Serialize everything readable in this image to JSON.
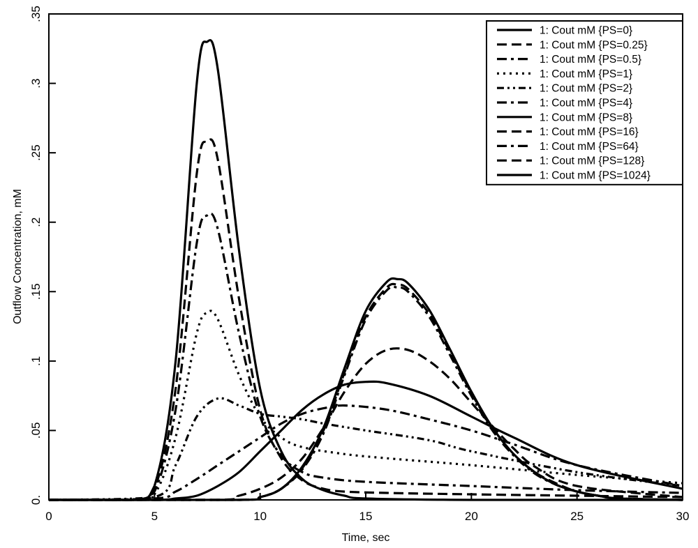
{
  "chart_data": {
    "type": "line",
    "title": "",
    "xlabel": "Time, sec",
    "ylabel": "Outflow Concentration, mM",
    "xlim": [
      0,
      30
    ],
    "ylim": [
      0,
      0.35
    ],
    "grid": false,
    "legend_position": "top-right",
    "x_ticks": [
      {
        "value": 0,
        "label": "0"
      },
      {
        "value": 5,
        "label": "5"
      },
      {
        "value": 10,
        "label": "10"
      },
      {
        "value": 15,
        "label": "15"
      },
      {
        "value": 20,
        "label": "20"
      },
      {
        "value": 25,
        "label": "25"
      },
      {
        "value": 30,
        "label": "30"
      }
    ],
    "y_ticks": [
      {
        "value": 0,
        "label": "0."
      },
      {
        "value": 0.05,
        "label": ".05"
      },
      {
        "value": 0.1,
        "label": ".1"
      },
      {
        "value": 0.15,
        "label": ".15"
      },
      {
        "value": 0.2,
        "label": ".2"
      },
      {
        "value": 0.25,
        "label": ".25"
      },
      {
        "value": 0.3,
        "label": ".3"
      },
      {
        "value": 0.35,
        "label": ".35"
      }
    ],
    "series": [
      {
        "name": "1: Cout mM {PS=0}",
        "dash": "solid",
        "x": [
          0,
          4,
          5,
          6,
          7,
          7.5,
          8,
          9,
          10,
          11,
          12,
          13,
          14,
          15,
          20,
          30
        ],
        "y": [
          0,
          0,
          0.01,
          0.1,
          0.3,
          0.33,
          0.31,
          0.18,
          0.08,
          0.035,
          0.015,
          0.007,
          0.003,
          0.001,
          0,
          0
        ]
      },
      {
        "name": "1: Cout mM {PS=0.25}",
        "dash": "long-dash",
        "x": [
          0,
          4,
          5,
          6,
          7,
          7.5,
          8,
          9,
          10,
          11,
          12,
          13,
          14,
          16,
          20,
          25,
          30
        ],
        "y": [
          0,
          0,
          0.008,
          0.08,
          0.235,
          0.258,
          0.245,
          0.145,
          0.065,
          0.03,
          0.014,
          0.008,
          0.006,
          0.005,
          0.004,
          0.003,
          0.002
        ]
      },
      {
        "name": "1: Cout mM {PS=0.5}",
        "dash": "dash-dot",
        "x": [
          0,
          4,
          5,
          6,
          7,
          7.5,
          8,
          9,
          10,
          11,
          12,
          13,
          15,
          20,
          25,
          30
        ],
        "y": [
          0,
          0,
          0.006,
          0.065,
          0.185,
          0.205,
          0.195,
          0.12,
          0.06,
          0.032,
          0.02,
          0.016,
          0.013,
          0.01,
          0.007,
          0.005
        ]
      },
      {
        "name": "1: Cout mM {PS=1}",
        "dash": "dotted",
        "x": [
          0,
          4,
          5,
          6,
          7,
          7.5,
          8,
          9,
          10,
          11,
          12,
          14,
          16,
          20,
          25,
          30
        ],
        "y": [
          0,
          0,
          0.004,
          0.045,
          0.12,
          0.135,
          0.13,
          0.09,
          0.06,
          0.045,
          0.038,
          0.033,
          0.03,
          0.025,
          0.018,
          0.012
        ]
      },
      {
        "name": "1: Cout mM {PS=2}",
        "dash": "dash-dot-dot",
        "x": [
          0,
          5,
          6,
          7,
          8,
          9,
          10,
          11,
          12,
          13,
          15,
          18,
          20,
          25,
          30
        ],
        "y": [
          0,
          0.002,
          0.025,
          0.06,
          0.073,
          0.068,
          0.062,
          0.06,
          0.058,
          0.055,
          0.05,
          0.043,
          0.035,
          0.02,
          0.01
        ]
      },
      {
        "name": "1: Cout mM {PS=4}",
        "dash": "dash-dot",
        "x": [
          0,
          5,
          6,
          7,
          8,
          9,
          10,
          11,
          12,
          13,
          14,
          16,
          18,
          20,
          22,
          25,
          30
        ],
        "y": [
          0,
          0.001,
          0.006,
          0.015,
          0.025,
          0.035,
          0.045,
          0.055,
          0.062,
          0.066,
          0.068,
          0.065,
          0.058,
          0.05,
          0.04,
          0.025,
          0.01
        ]
      },
      {
        "name": "1: Cout mM {PS=8}",
        "dash": "solid",
        "x": [
          0,
          5,
          6,
          7,
          8,
          9,
          10,
          11,
          12,
          13,
          14,
          15,
          16,
          18,
          20,
          22,
          25,
          30
        ],
        "y": [
          0,
          0,
          0.001,
          0.003,
          0.01,
          0.02,
          0.035,
          0.05,
          0.065,
          0.076,
          0.083,
          0.085,
          0.084,
          0.075,
          0.06,
          0.045,
          0.025,
          0.008
        ]
      },
      {
        "name": "1: Cout mM {PS=16}",
        "dash": "long-dash",
        "x": [
          0,
          8,
          9,
          10,
          11,
          12,
          13,
          14,
          15,
          16,
          17,
          18,
          19,
          20,
          21,
          22,
          23,
          25,
          30
        ],
        "y": [
          0,
          0,
          0.003,
          0.008,
          0.016,
          0.03,
          0.052,
          0.078,
          0.098,
          0.108,
          0.108,
          0.1,
          0.087,
          0.07,
          0.053,
          0.037,
          0.024,
          0.01,
          0.002
        ]
      },
      {
        "name": "1: Cout mM {PS=64}",
        "dash": "dash-dot",
        "x": [
          0,
          9,
          10,
          11,
          12,
          13,
          14,
          15,
          16,
          16.5,
          17,
          18,
          19,
          20,
          21,
          22,
          23,
          24,
          25,
          26,
          27,
          30
        ],
        "y": [
          0,
          0,
          0.002,
          0.008,
          0.022,
          0.048,
          0.09,
          0.13,
          0.151,
          0.153,
          0.15,
          0.132,
          0.104,
          0.075,
          0.05,
          0.032,
          0.019,
          0.011,
          0.006,
          0.003,
          0.001,
          0
        ]
      },
      {
        "name": "1: Cout mM {PS=128}",
        "dash": "long-dash",
        "x": [
          0,
          9,
          10,
          11,
          12,
          13,
          14,
          15,
          16,
          16.5,
          17,
          18,
          19,
          20,
          21,
          22,
          23,
          24,
          25,
          26,
          27,
          30
        ],
        "y": [
          0,
          0,
          0.002,
          0.008,
          0.023,
          0.05,
          0.092,
          0.132,
          0.153,
          0.155,
          0.152,
          0.134,
          0.106,
          0.077,
          0.052,
          0.033,
          0.02,
          0.012,
          0.006,
          0.003,
          0.001,
          0
        ]
      },
      {
        "name": "1: Cout mM {PS=1024}",
        "dash": "solid",
        "x": [
          0,
          9,
          10,
          11,
          12,
          13,
          14,
          15,
          16,
          16.5,
          17,
          18,
          19,
          20,
          21,
          22,
          23,
          24,
          25,
          26,
          27,
          30
        ],
        "y": [
          0,
          0,
          0.002,
          0.008,
          0.024,
          0.052,
          0.095,
          0.136,
          0.157,
          0.159,
          0.156,
          0.137,
          0.108,
          0.078,
          0.052,
          0.033,
          0.02,
          0.011,
          0.006,
          0.003,
          0.001,
          0
        ]
      }
    ]
  }
}
